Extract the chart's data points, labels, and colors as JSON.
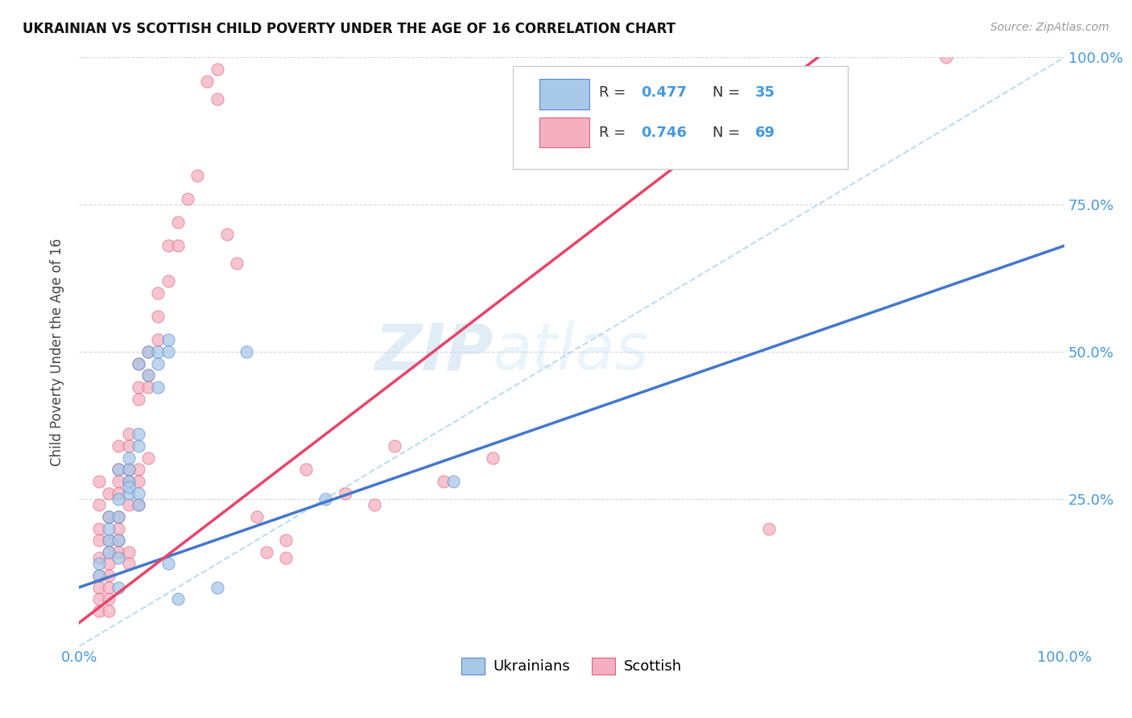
{
  "title": "UKRAINIAN VS SCOTTISH CHILD POVERTY UNDER THE AGE OF 16 CORRELATION CHART",
  "source": "Source: ZipAtlas.com",
  "ylabel": "Child Poverty Under the Age of 16",
  "xlim": [
    0,
    1
  ],
  "ylim": [
    0,
    1
  ],
  "ytick_labels_right": [
    "25.0%",
    "50.0%",
    "75.0%",
    "100.0%"
  ],
  "ytick_positions_right": [
    0.25,
    0.5,
    0.75,
    1.0
  ],
  "legend_label1": "Ukrainians",
  "legend_label2": "Scottish",
  "ukrainian_color": "#a8c8e8",
  "scottish_color": "#f4b0c0",
  "ukrainian_edge_color": "#5588cc",
  "scottish_edge_color": "#e06080",
  "ukrainian_line_color": "#4477cc",
  "scottish_line_color": "#e8446a",
  "diagonal_color": "#bbddee",
  "watermark_zip": "ZIP",
  "watermark_atlas": "atlas",
  "ukrainian_scatter": [
    [
      0.02,
      0.14
    ],
    [
      0.02,
      0.12
    ],
    [
      0.03,
      0.18
    ],
    [
      0.03,
      0.16
    ],
    [
      0.03,
      0.22
    ],
    [
      0.03,
      0.2
    ],
    [
      0.04,
      0.15
    ],
    [
      0.04,
      0.18
    ],
    [
      0.04,
      0.22
    ],
    [
      0.04,
      0.3
    ],
    [
      0.04,
      0.25
    ],
    [
      0.04,
      0.1
    ],
    [
      0.05,
      0.26
    ],
    [
      0.05,
      0.28
    ],
    [
      0.05,
      0.3
    ],
    [
      0.05,
      0.32
    ],
    [
      0.05,
      0.27
    ],
    [
      0.06,
      0.34
    ],
    [
      0.06,
      0.36
    ],
    [
      0.06,
      0.26
    ],
    [
      0.06,
      0.24
    ],
    [
      0.06,
      0.48
    ],
    [
      0.07,
      0.5
    ],
    [
      0.07,
      0.46
    ],
    [
      0.08,
      0.5
    ],
    [
      0.08,
      0.48
    ],
    [
      0.08,
      0.44
    ],
    [
      0.09,
      0.52
    ],
    [
      0.09,
      0.5
    ],
    [
      0.09,
      0.14
    ],
    [
      0.1,
      0.08
    ],
    [
      0.14,
      0.1
    ],
    [
      0.17,
      0.5
    ],
    [
      0.25,
      0.25
    ],
    [
      0.38,
      0.28
    ]
  ],
  "scottish_scatter": [
    [
      0.02,
      0.28
    ],
    [
      0.02,
      0.24
    ],
    [
      0.02,
      0.2
    ],
    [
      0.02,
      0.18
    ],
    [
      0.02,
      0.15
    ],
    [
      0.02,
      0.12
    ],
    [
      0.02,
      0.1
    ],
    [
      0.02,
      0.08
    ],
    [
      0.02,
      0.06
    ],
    [
      0.03,
      0.26
    ],
    [
      0.03,
      0.22
    ],
    [
      0.03,
      0.18
    ],
    [
      0.03,
      0.16
    ],
    [
      0.03,
      0.14
    ],
    [
      0.03,
      0.12
    ],
    [
      0.03,
      0.1
    ],
    [
      0.03,
      0.08
    ],
    [
      0.03,
      0.06
    ],
    [
      0.04,
      0.34
    ],
    [
      0.04,
      0.3
    ],
    [
      0.04,
      0.28
    ],
    [
      0.04,
      0.26
    ],
    [
      0.04,
      0.22
    ],
    [
      0.04,
      0.2
    ],
    [
      0.04,
      0.18
    ],
    [
      0.04,
      0.16
    ],
    [
      0.05,
      0.36
    ],
    [
      0.05,
      0.34
    ],
    [
      0.05,
      0.3
    ],
    [
      0.05,
      0.28
    ],
    [
      0.05,
      0.24
    ],
    [
      0.05,
      0.16
    ],
    [
      0.05,
      0.14
    ],
    [
      0.06,
      0.48
    ],
    [
      0.06,
      0.44
    ],
    [
      0.06,
      0.42
    ],
    [
      0.06,
      0.3
    ],
    [
      0.06,
      0.28
    ],
    [
      0.06,
      0.24
    ],
    [
      0.07,
      0.5
    ],
    [
      0.07,
      0.46
    ],
    [
      0.07,
      0.44
    ],
    [
      0.07,
      0.32
    ],
    [
      0.08,
      0.6
    ],
    [
      0.08,
      0.56
    ],
    [
      0.08,
      0.52
    ],
    [
      0.09,
      0.68
    ],
    [
      0.09,
      0.62
    ],
    [
      0.1,
      0.72
    ],
    [
      0.1,
      0.68
    ],
    [
      0.11,
      0.76
    ],
    [
      0.12,
      0.8
    ],
    [
      0.13,
      0.96
    ],
    [
      0.14,
      0.98
    ],
    [
      0.14,
      0.93
    ],
    [
      0.15,
      0.7
    ],
    [
      0.16,
      0.65
    ],
    [
      0.18,
      0.22
    ],
    [
      0.19,
      0.16
    ],
    [
      0.21,
      0.18
    ],
    [
      0.21,
      0.15
    ],
    [
      0.23,
      0.3
    ],
    [
      0.27,
      0.26
    ],
    [
      0.3,
      0.24
    ],
    [
      0.32,
      0.34
    ],
    [
      0.37,
      0.28
    ],
    [
      0.42,
      0.32
    ],
    [
      0.7,
      0.2
    ],
    [
      0.88,
      1.0
    ]
  ],
  "uk_line_x": [
    0.0,
    1.0
  ],
  "uk_line_y": [
    0.1,
    0.68
  ],
  "sc_line_x": [
    0.0,
    0.75
  ],
  "sc_line_y": [
    0.04,
    1.0
  ],
  "diag_line_x": [
    0.0,
    1.0
  ],
  "diag_line_y": [
    0.0,
    1.0
  ]
}
